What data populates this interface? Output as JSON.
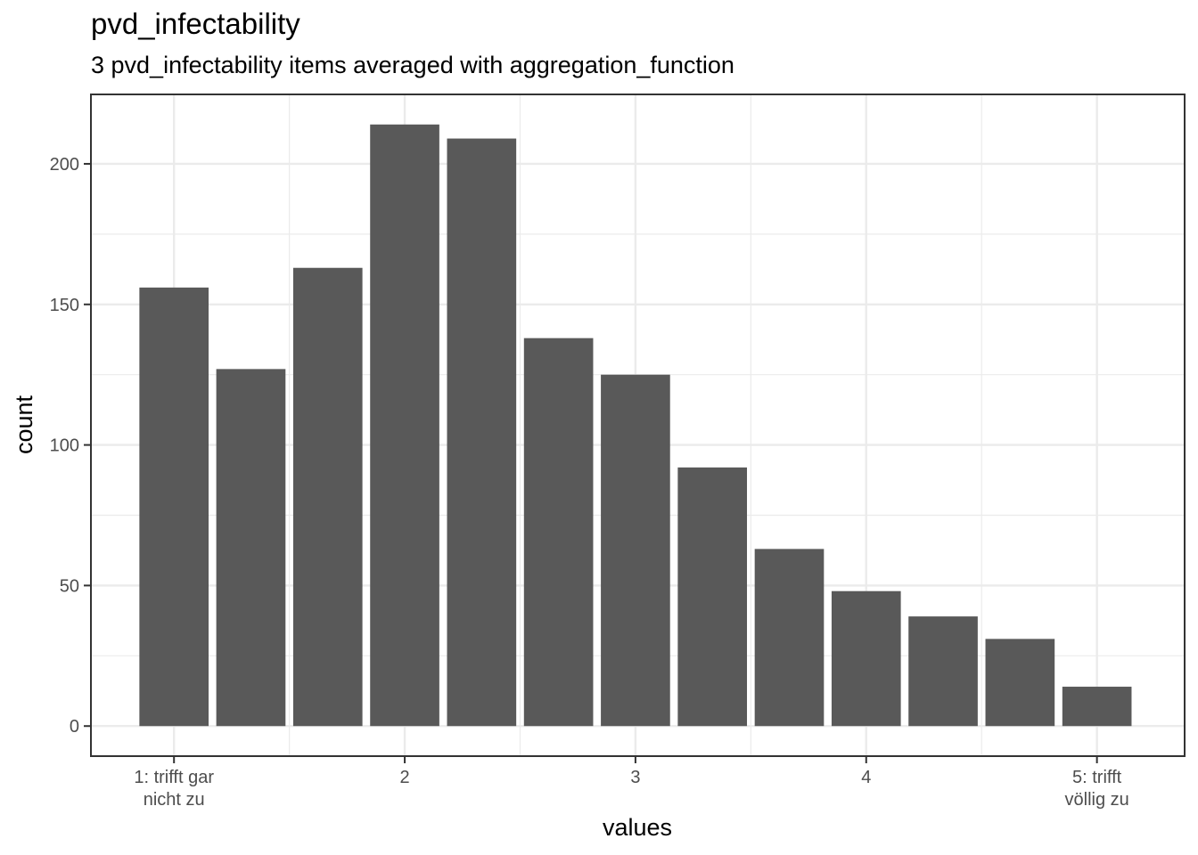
{
  "chart_data": {
    "type": "bar",
    "title": "pvd_infectability",
    "subtitle": "3 pvd_infectability items averaged with aggregation_function",
    "xlabel": "values",
    "ylabel": "count",
    "x": [
      1.0,
      1.3333,
      1.6667,
      2.0,
      2.3333,
      2.6667,
      3.0,
      3.3333,
      3.6667,
      4.0,
      4.3333,
      4.6667,
      5.0
    ],
    "values": [
      156,
      127,
      163,
      214,
      209,
      138,
      125,
      92,
      63,
      48,
      39,
      31,
      14
    ],
    "xlim": [
      0.64,
      5.38
    ],
    "ylim": [
      -10.7,
      224.7
    ],
    "x_ticks": [
      {
        "value": 1,
        "label": [
          "1: trifft gar",
          "nicht zu"
        ]
      },
      {
        "value": 2,
        "label": [
          "2"
        ]
      },
      {
        "value": 3,
        "label": [
          "3"
        ]
      },
      {
        "value": 4,
        "label": [
          "4"
        ]
      },
      {
        "value": 5,
        "label": [
          "5: trifft",
          "völlig zu"
        ]
      }
    ],
    "y_ticks": [
      0,
      50,
      100,
      150,
      200
    ],
    "grid": true,
    "bar_color": "#595959"
  }
}
